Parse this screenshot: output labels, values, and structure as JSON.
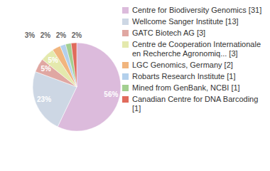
{
  "chart_data": {
    "type": "pie",
    "categories": [
      "Centre for Biodiversity Genomics [31]",
      "Wellcome Sanger Institute [13]",
      "GATC Biotech AG [3]",
      "Centre de Cooperation Internationale en Recherche Agronomiq... [3]",
      "LGC Genomics, Germany [2]",
      "Robarts Research Institute [1]",
      "Mined from GenBank, NCBI [1]",
      "Canadian Centre for DNA Barcoding [1]"
    ],
    "values": [
      56,
      23,
      5,
      5,
      3,
      2,
      2,
      2
    ],
    "value_labels": [
      "56%",
      "23%",
      "5%",
      "5%",
      "3%",
      "2%",
      "2%",
      "2%"
    ],
    "colors": [
      "#dcbbdc",
      "#cdd7e4",
      "#e0a7a2",
      "#e4e9ad",
      "#f1b57e",
      "#b3d0ec",
      "#a3cf90",
      "#e06b5c"
    ],
    "data_labels": true,
    "legend": "right"
  }
}
